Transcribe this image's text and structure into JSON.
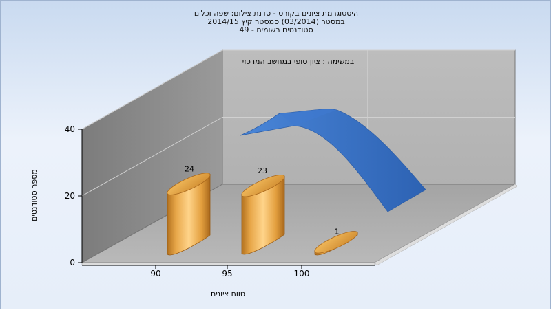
{
  "chart_data": {
    "type": "bar",
    "title": "היסטוגרמת ציונים בקורס - סדנת צילום: שפה וכלים",
    "subtitle": "במסטר (03/2014) סמסטר קיץ 2014/15",
    "subtitle2": "סטודנטים רשומים - 49",
    "xlabel": "טווח ציונים",
    "ylabel": "מספר סטודנטים",
    "categories": [
      "90",
      "95",
      "100"
    ],
    "series": [
      {
        "values": [
          24,
          23,
          1
        ],
        "labels": [
          "24",
          "23",
          "1"
        ],
        "color": "#e5a53f"
      }
    ],
    "ylim": [
      0,
      40
    ],
    "yticks": [
      "0",
      "20",
      "40"
    ],
    "curve": {
      "name": "במשימה : ציון סופי במחשב המרכזי",
      "color": "#3a73c8",
      "approx_values": [
        40,
        43.5,
        43.5,
        36,
        22
      ]
    },
    "grid": true,
    "projection": "3d"
  }
}
